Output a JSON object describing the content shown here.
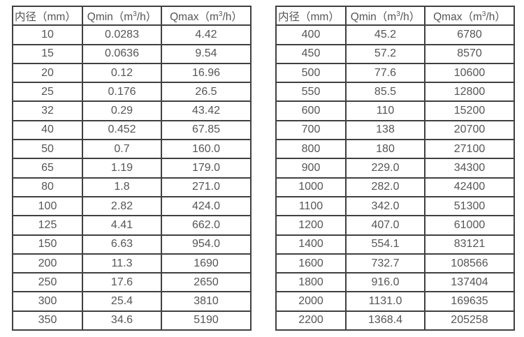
{
  "colors": {
    "border": "#404040",
    "text": "#555555",
    "background": "#ffffff"
  },
  "tables": [
    {
      "title": "flow-range-table-small-diameters",
      "headers": [
        "内径（mm）",
        "Qmin（m³/h）",
        "Qmax（m³/h）"
      ],
      "rows": [
        [
          "10",
          "0.0283",
          "4.42"
        ],
        [
          "15",
          "0.0636",
          "9.54"
        ],
        [
          "20",
          "0.12",
          "16.96"
        ],
        [
          "25",
          "0.176",
          "26.5"
        ],
        [
          "32",
          "0.29",
          "43.42"
        ],
        [
          "40",
          "0.452",
          "67.85"
        ],
        [
          "50",
          "0.7",
          "160.0"
        ],
        [
          "65",
          "1.19",
          "179.0"
        ],
        [
          "80",
          "1.8",
          "271.0"
        ],
        [
          "100",
          "2.82",
          "424.0"
        ],
        [
          "125",
          "4.41",
          "662.0"
        ],
        [
          "150",
          "6.63",
          "954.0"
        ],
        [
          "200",
          "11.3",
          "1690"
        ],
        [
          "250",
          "17.6",
          "2650"
        ],
        [
          "300",
          "25.4",
          "3810"
        ],
        [
          "350",
          "34.6",
          "5190"
        ]
      ]
    },
    {
      "title": "flow-range-table-large-diameters",
      "headers": [
        "内径（mm）",
        "Qmin（m³/h）",
        "Qmax（m³/h）"
      ],
      "rows": [
        [
          "400",
          "45.2",
          "6780"
        ],
        [
          "450",
          "57.2",
          "8570"
        ],
        [
          "500",
          "77.6",
          "10600"
        ],
        [
          "550",
          "85.5",
          "12800"
        ],
        [
          "600",
          "110",
          "15200"
        ],
        [
          "700",
          "138",
          "20700"
        ],
        [
          "800",
          "180",
          "27100"
        ],
        [
          "900",
          "229.0",
          "34300"
        ],
        [
          "1000",
          "282.0",
          "42400"
        ],
        [
          "1100",
          "342.0",
          "51300"
        ],
        [
          "1200",
          "407.0",
          "61000"
        ],
        [
          "1400",
          "554.1",
          "83121"
        ],
        [
          "1600",
          "732.7",
          "108566"
        ],
        [
          "1800",
          "916.0",
          "137404"
        ],
        [
          "2000",
          "1131.0",
          "169635"
        ],
        [
          "2200",
          "1368.4",
          "205258"
        ]
      ]
    }
  ]
}
